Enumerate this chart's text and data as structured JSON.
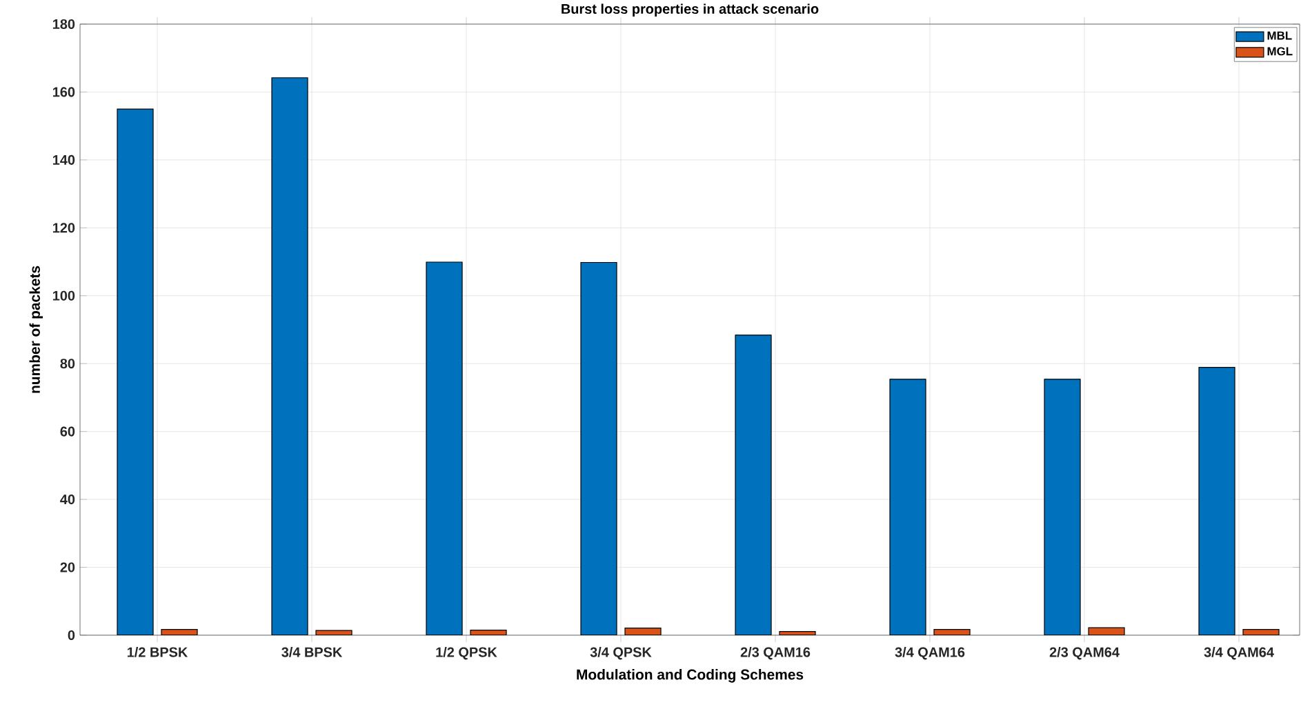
{
  "chart_data": {
    "type": "bar",
    "title": "Burst loss properties in attack scenario",
    "xlabel": "Modulation and Coding Schemes",
    "ylabel": "number of packets",
    "categories": [
      "1/2 BPSK",
      "3/4 BPSK",
      "1/2 QPSK",
      "3/4 QPSK",
      "2/3 QAM16",
      "3/4 QAM16",
      "2/3 QAM64",
      "3/4 QAM64"
    ],
    "series": [
      {
        "name": "MBL",
        "color": "#0072bd",
        "values": [
          155,
          164.2,
          109.9,
          109.8,
          88.4,
          75.4,
          75.4,
          78.9
        ]
      },
      {
        "name": "MGL",
        "color": "#d95319",
        "values": [
          1.7,
          1.4,
          1.5,
          2.1,
          1.1,
          1.7,
          2.2,
          1.7
        ]
      }
    ],
    "ylim": [
      0,
      180
    ],
    "yticks": [
      0,
      20,
      40,
      60,
      80,
      100,
      120,
      140,
      160,
      180
    ],
    "grid": true,
    "legend": "top right"
  }
}
